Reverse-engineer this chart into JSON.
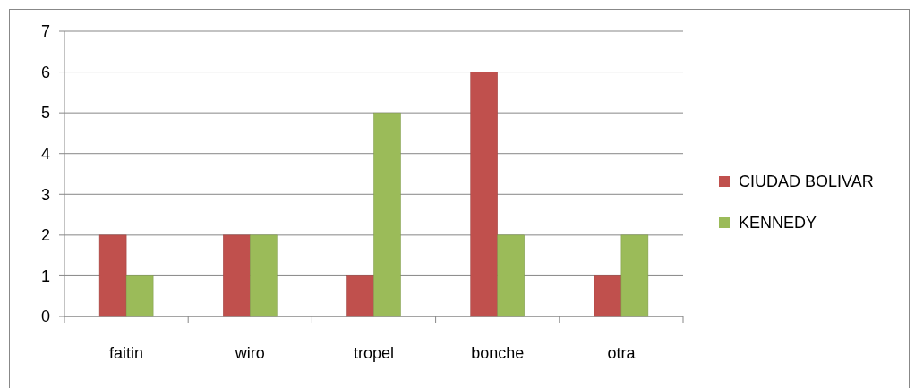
{
  "chart_data": {
    "type": "bar",
    "categories": [
      "faitin",
      "wiro",
      "tropel",
      "bonche",
      "otra"
    ],
    "series": [
      {
        "name": "CIUDAD BOLIVAR",
        "color": "#c0504d",
        "values": [
          2,
          2,
          1,
          6,
          1
        ]
      },
      {
        "name": "KENNEDY",
        "color": "#9bbb59",
        "values": [
          1,
          2,
          5,
          2,
          2
        ]
      }
    ],
    "ylim": [
      0,
      7
    ],
    "yticks": [
      0,
      1,
      2,
      3,
      4,
      5,
      6,
      7
    ],
    "grid": "y",
    "legend": "right"
  }
}
